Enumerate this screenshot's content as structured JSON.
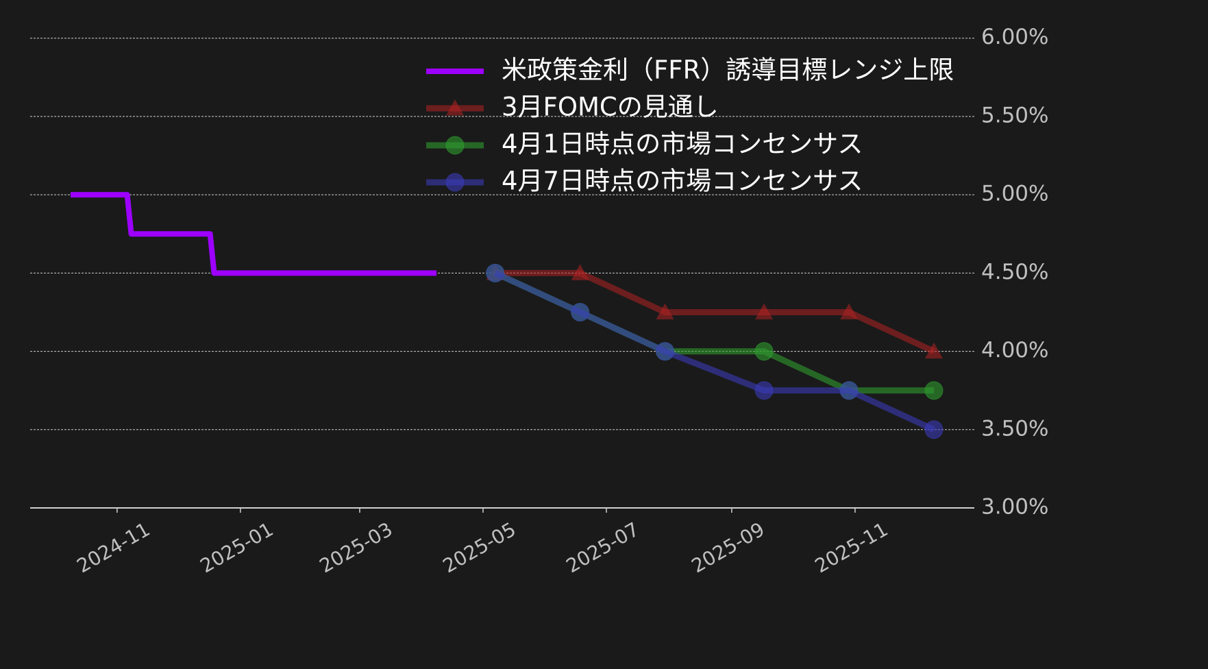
{
  "chart_data": {
    "type": "line",
    "series": [
      {
        "name": "米政策金利（FFR）誘導目標レンジ上限",
        "color": "#9d00ff",
        "marker": null,
        "opacity": 1,
        "x": [
          "2024-10-09",
          "2024-11-06",
          "2024-11-08",
          "2024-12-17",
          "2024-12-19",
          "2025-04-08"
        ],
        "values": [
          5.0,
          5.0,
          4.75,
          4.75,
          4.5,
          4.5
        ]
      },
      {
        "name": "3月FOMCの見通し",
        "color": "#b22222",
        "marker": "triangle",
        "opacity": 0.55,
        "x": [
          "2025-05-07",
          "2025-06-18",
          "2025-07-30",
          "2025-09-17",
          "2025-10-29",
          "2025-12-10"
        ],
        "values": [
          4.5,
          4.5,
          4.25,
          4.25,
          4.25,
          4.0
        ]
      },
      {
        "name": "4月1日時点の市場コンセンサス",
        "color": "#2e9b2e",
        "marker": "circle",
        "opacity": 0.6,
        "x": [
          "2025-05-07",
          "2025-06-18",
          "2025-07-30",
          "2025-09-17",
          "2025-10-29",
          "2025-12-10"
        ],
        "values": [
          4.5,
          4.25,
          4.0,
          4.0,
          3.75,
          3.75
        ]
      },
      {
        "name": "4月7日時点の市場コンセンサス",
        "color": "#3a3ab8",
        "marker": "circle",
        "opacity": 0.6,
        "x": [
          "2025-05-07",
          "2025-06-18",
          "2025-07-30",
          "2025-09-17",
          "2025-10-29",
          "2025-12-10"
        ],
        "values": [
          4.5,
          4.25,
          4.0,
          3.75,
          3.75,
          3.5
        ]
      }
    ],
    "xlim": [
      "2024-09-19",
      "2025-12-30"
    ],
    "xticks": [
      {
        "value": "2024-11-01",
        "label": "2024-11"
      },
      {
        "value": "2025-01-01",
        "label": "2025-01"
      },
      {
        "value": "2025-03-01",
        "label": "2025-03"
      },
      {
        "value": "2025-05-01",
        "label": "2025-05"
      },
      {
        "value": "2025-07-01",
        "label": "2025-07"
      },
      {
        "value": "2025-09-01",
        "label": "2025-09"
      },
      {
        "value": "2025-11-01",
        "label": "2025-11"
      }
    ],
    "ylim": [
      3.0,
      6.2
    ],
    "yticks": [
      {
        "value": 3.0,
        "label": "3.00%"
      },
      {
        "value": 3.5,
        "label": "3.50%"
      },
      {
        "value": 4.0,
        "label": "4.00%"
      },
      {
        "value": 4.5,
        "label": "4.50%"
      },
      {
        "value": 5.0,
        "label": "5.00%"
      },
      {
        "value": 5.5,
        "label": "5.50%"
      },
      {
        "value": 6.0,
        "label": "6.00%"
      }
    ],
    "grid": true,
    "legend": "upper right"
  }
}
